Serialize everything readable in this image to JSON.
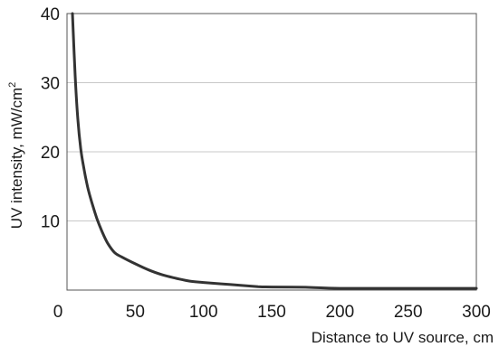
{
  "chart_data": {
    "type": "line",
    "xlabel": "Distance to UV source, cm",
    "ylabel": "UV intensity, mW/cm",
    "ylabel_superscript": "2",
    "xlim": [
      0,
      300
    ],
    "ylim": [
      0,
      40
    ],
    "xticks": [
      0,
      50,
      100,
      150,
      200,
      250,
      300
    ],
    "xtick_labels": [
      "0",
      "50",
      "100",
      "150",
      "200",
      "250",
      "300"
    ],
    "yticks": [
      10,
      20,
      30,
      40
    ],
    "ytick_labels": [
      "10",
      "20",
      "30",
      "40"
    ],
    "grid": "horizontal",
    "series": [
      {
        "color": "#333333",
        "x": [
          4,
          6,
          8,
          10,
          12,
          15,
          18,
          22,
          26,
          30,
          35,
          40,
          50,
          60,
          70,
          80,
          90,
          100,
          120,
          140,
          150,
          175,
          200,
          250,
          300
        ],
        "y": [
          40,
          31,
          24.5,
          20.5,
          18,
          15,
          12.8,
          10.3,
          8.3,
          6.7,
          5.4,
          4.8,
          3.8,
          2.9,
          2.2,
          1.7,
          1.3,
          1.1,
          0.8,
          0.5,
          0.45,
          0.4,
          0.25,
          0.25,
          0.25
        ]
      }
    ]
  }
}
